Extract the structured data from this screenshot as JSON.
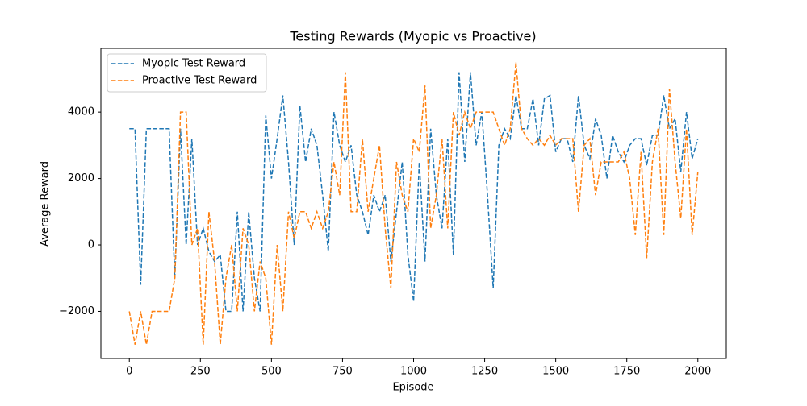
{
  "chart_data": {
    "type": "line",
    "title": "Testing Rewards (Myopic vs Proactive)",
    "xlabel": "Episode",
    "ylabel": "Average Reward",
    "x": [
      0,
      20,
      40,
      60,
      80,
      100,
      120,
      140,
      160,
      180,
      200,
      220,
      240,
      260,
      280,
      300,
      320,
      340,
      360,
      380,
      400,
      420,
      440,
      460,
      480,
      500,
      520,
      540,
      560,
      580,
      600,
      620,
      640,
      660,
      680,
      700,
      720,
      740,
      760,
      780,
      800,
      820,
      840,
      860,
      880,
      900,
      920,
      940,
      960,
      980,
      1000,
      1020,
      1040,
      1060,
      1080,
      1100,
      1120,
      1140,
      1160,
      1180,
      1200,
      1220,
      1240,
      1260,
      1280,
      1300,
      1320,
      1340,
      1360,
      1380,
      1400,
      1420,
      1440,
      1460,
      1480,
      1500,
      1520,
      1540,
      1560,
      1580,
      1600,
      1620,
      1640,
      1660,
      1680,
      1700,
      1720,
      1740,
      1760,
      1780,
      1800,
      1820,
      1840,
      1860,
      1880,
      1900,
      1920,
      1940,
      1960,
      1980,
      2000
    ],
    "series": [
      {
        "name": "Myopic Test Reward",
        "color": "#1f77b4",
        "values": [
          3500,
          3500,
          -1200,
          3500,
          3500,
          3500,
          3500,
          3500,
          -1000,
          3500,
          0,
          3200,
          0,
          500,
          -200,
          -500,
          -300,
          -2000,
          -2000,
          1000,
          -2000,
          1000,
          -1000,
          -2000,
          3900,
          2000,
          3200,
          4500,
          2500,
          0,
          4200,
          2500,
          3500,
          3000,
          1500,
          -200,
          4000,
          3000,
          2500,
          3000,
          1500,
          1000,
          300,
          1500,
          1000,
          1500,
          -500,
          1000,
          2500,
          -300,
          -1700,
          2500,
          -500,
          3500,
          1500,
          500,
          3200,
          -300,
          5200,
          2500,
          5200,
          3000,
          4000,
          1500,
          -1300,
          3000,
          3500,
          3200,
          4500,
          3500,
          3500,
          4400,
          3000,
          4400,
          4500,
          2800,
          3200,
          3200,
          2500,
          4500,
          3000,
          2600,
          3800,
          3300,
          2000,
          3300,
          2800,
          2500,
          3000,
          3200,
          3200,
          2400,
          3300,
          3300,
          4500,
          3500,
          3800,
          2200,
          4000,
          2600,
          3200
        ]
      },
      {
        "name": "Proactive Test Reward",
        "color": "#ff7f0e",
        "values": [
          -2000,
          -3000,
          -2000,
          -3000,
          -2000,
          -2000,
          -2000,
          -2000,
          -1000,
          4000,
          4000,
          0,
          500,
          -3000,
          1000,
          -500,
          -3000,
          -1000,
          0,
          -2000,
          500,
          0,
          -2000,
          -500,
          -1000,
          -3000,
          0,
          -2000,
          1000,
          200,
          1000,
          1000,
          500,
          1000,
          500,
          1000,
          2500,
          1500,
          5200,
          1000,
          1000,
          3200,
          1000,
          2000,
          3000,
          500,
          -1300,
          2500,
          1500,
          1000,
          3200,
          2800,
          4800,
          500,
          1500,
          3200,
          500,
          4000,
          3300,
          4000,
          3500,
          4000,
          4000,
          4000,
          4000,
          3500,
          3000,
          3500,
          5500,
          3500,
          3200,
          3000,
          3200,
          3000,
          3300,
          3000,
          3200,
          3200,
          3200,
          1000,
          3000,
          3200,
          1500,
          2500,
          2500,
          2500,
          2500,
          2800,
          2000,
          300,
          2800,
          -400,
          2500,
          3500,
          300,
          4700,
          2500,
          800,
          3500,
          300,
          2200
        ]
      }
    ],
    "xlim": [
      -100,
      2100
    ],
    "ylim": [
      -3420,
      5920
    ],
    "xticks": [
      0,
      250,
      500,
      750,
      1000,
      1250,
      1500,
      1750,
      2000
    ],
    "yticks": [
      {
        "value": -2000,
        "label": "−2000"
      },
      0,
      2000,
      4000
    ],
    "legend": "upper left"
  }
}
